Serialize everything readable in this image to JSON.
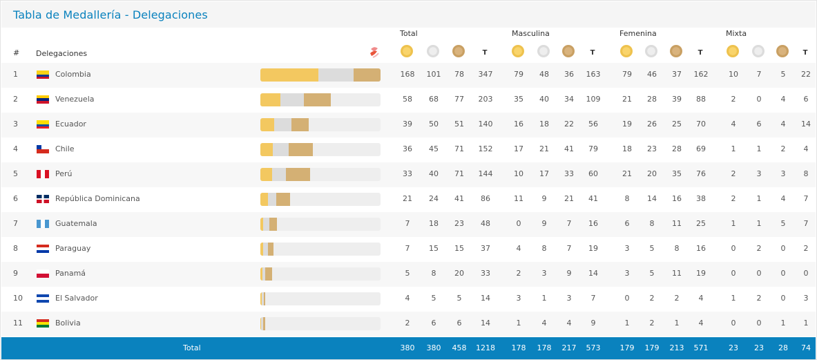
{
  "title": "Tabla de Medallería - Delegaciones",
  "header": {
    "rank": "#",
    "delegations": "Delegaciones",
    "groups": [
      "Total",
      "Masculina",
      "Femenina",
      "Mixta"
    ],
    "total_col": "T"
  },
  "medal_icons": [
    "gold-medal-icon",
    "silver-medal-icon",
    "bronze-medal-icon"
  ],
  "colors": {
    "accent": "#0a82be",
    "gold": "#f3c860",
    "silver": "#dcdcdc",
    "bronze": "#d4b074"
  },
  "rows": [
    {
      "rank": "1",
      "name": "Colombia",
      "flag": "colombia",
      "total": [
        168,
        101,
        78,
        347
      ],
      "men": [
        79,
        48,
        36,
        163
      ],
      "women": [
        79,
        46,
        37,
        162
      ],
      "mixed": [
        10,
        7,
        5,
        22
      ]
    },
    {
      "rank": "2",
      "name": "Venezuela",
      "flag": "venezuela",
      "total": [
        58,
        68,
        77,
        203
      ],
      "men": [
        35,
        40,
        34,
        109
      ],
      "women": [
        21,
        28,
        39,
        88
      ],
      "mixed": [
        2,
        0,
        4,
        6
      ]
    },
    {
      "rank": "3",
      "name": "Ecuador",
      "flag": "ecuador",
      "total": [
        39,
        50,
        51,
        140
      ],
      "men": [
        16,
        18,
        22,
        56
      ],
      "women": [
        19,
        26,
        25,
        70
      ],
      "mixed": [
        4,
        6,
        4,
        14
      ]
    },
    {
      "rank": "4",
      "name": "Chile",
      "flag": "chile",
      "total": [
        36,
        45,
        71,
        152
      ],
      "men": [
        17,
        21,
        41,
        79
      ],
      "women": [
        18,
        23,
        28,
        69
      ],
      "mixed": [
        1,
        1,
        2,
        4
      ]
    },
    {
      "rank": "5",
      "name": "Perú",
      "flag": "peru",
      "total": [
        33,
        40,
        71,
        144
      ],
      "men": [
        10,
        17,
        33,
        60
      ],
      "women": [
        21,
        20,
        35,
        76
      ],
      "mixed": [
        2,
        3,
        3,
        8
      ]
    },
    {
      "rank": "6",
      "name": "República Dominicana",
      "flag": "dominican-republic",
      "total": [
        21,
        24,
        41,
        86
      ],
      "men": [
        11,
        9,
        21,
        41
      ],
      "women": [
        8,
        14,
        16,
        38
      ],
      "mixed": [
        2,
        1,
        4,
        7
      ]
    },
    {
      "rank": "7",
      "name": "Guatemala",
      "flag": "guatemala",
      "total": [
        7,
        18,
        23,
        48
      ],
      "men": [
        0,
        9,
        7,
        16
      ],
      "women": [
        6,
        8,
        11,
        25
      ],
      "mixed": [
        1,
        1,
        5,
        7
      ]
    },
    {
      "rank": "8",
      "name": "Paraguay",
      "flag": "paraguay",
      "total": [
        7,
        15,
        15,
        37
      ],
      "men": [
        4,
        8,
        7,
        19
      ],
      "women": [
        3,
        5,
        8,
        16
      ],
      "mixed": [
        0,
        2,
        0,
        2
      ]
    },
    {
      "rank": "9",
      "name": "Panamá",
      "flag": "panama",
      "total": [
        5,
        8,
        20,
        33
      ],
      "men": [
        2,
        3,
        9,
        14
      ],
      "women": [
        3,
        5,
        11,
        19
      ],
      "mixed": [
        0,
        0,
        0,
        0
      ]
    },
    {
      "rank": "10",
      "name": "El Salvador",
      "flag": "el-salvador",
      "total": [
        4,
        5,
        5,
        14
      ],
      "men": [
        3,
        1,
        3,
        7
      ],
      "women": [
        0,
        2,
        2,
        4
      ],
      "mixed": [
        1,
        2,
        0,
        3
      ]
    },
    {
      "rank": "11",
      "name": "Bolivia",
      "flag": "bolivia",
      "total": [
        2,
        6,
        6,
        14
      ],
      "men": [
        1,
        4,
        4,
        9
      ],
      "women": [
        1,
        2,
        1,
        4
      ],
      "mixed": [
        0,
        0,
        1,
        1
      ]
    }
  ],
  "totals": {
    "label": "Total",
    "total": [
      380,
      380,
      458,
      1218
    ],
    "men": [
      178,
      178,
      217,
      573
    ],
    "women": [
      179,
      179,
      213,
      571
    ],
    "mixed": [
      23,
      23,
      28,
      74
    ]
  }
}
